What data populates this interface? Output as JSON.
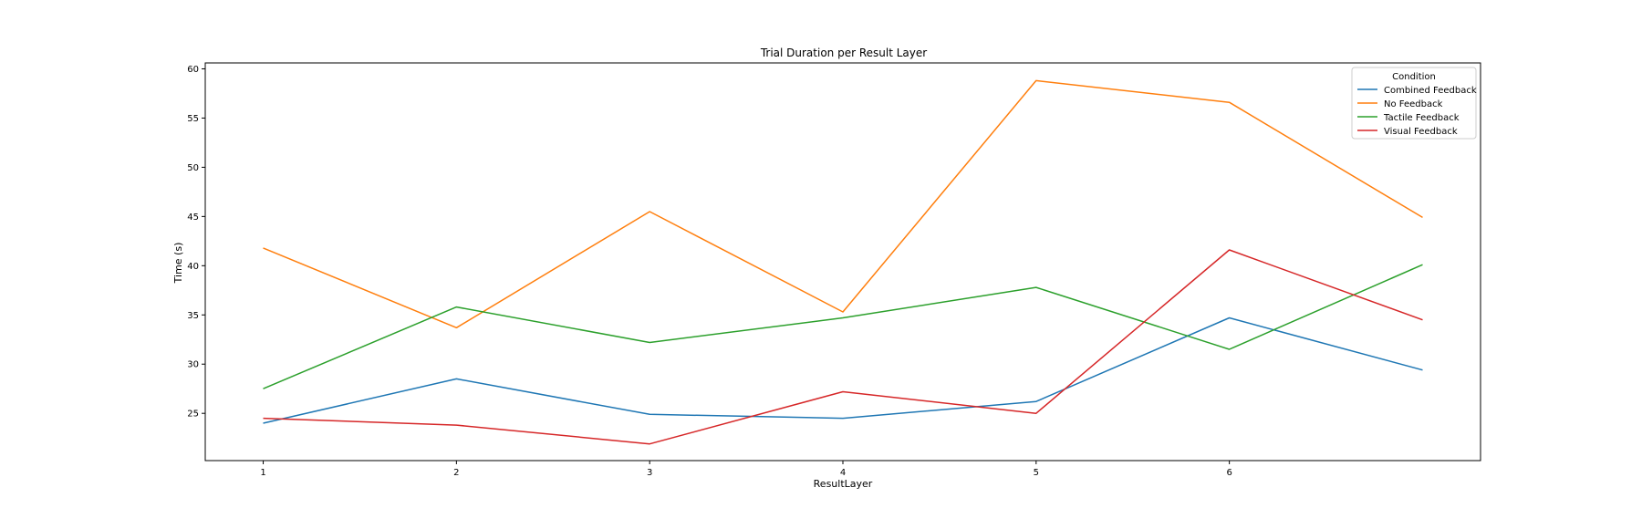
{
  "chart_data": {
    "type": "line",
    "title": "Trial Duration per Result Layer",
    "xlabel": "ResultLayer",
    "ylabel": "Time (s)",
    "x": [
      1,
      2,
      3,
      4,
      5,
      6,
      7
    ],
    "x_ticks": [
      "1",
      "2",
      "3",
      "4",
      "5",
      "6"
    ],
    "xlim": [
      0.7,
      7.3
    ],
    "y_ticks": [
      "25",
      "30",
      "35",
      "40",
      "45",
      "50",
      "55",
      "60"
    ],
    "ylim": [
      20.2,
      60.6
    ],
    "grid": false,
    "legend": {
      "title": "Condition",
      "placement": "top-right"
    },
    "series": [
      {
        "name": "Combined Feedback",
        "color": "#1f77b4",
        "values": [
          24.0,
          28.5,
          24.9,
          24.5,
          26.2,
          34.7,
          29.4
        ]
      },
      {
        "name": "No Feedback",
        "color": "#ff7f0e",
        "values": [
          41.8,
          33.7,
          45.5,
          35.3,
          58.8,
          56.6,
          44.9
        ]
      },
      {
        "name": "Tactile Feedback",
        "color": "#2ca02c",
        "values": [
          27.5,
          35.8,
          32.2,
          34.7,
          37.8,
          31.5,
          40.1
        ]
      },
      {
        "name": "Visual Feedback",
        "color": "#d62728",
        "values": [
          24.5,
          23.8,
          21.9,
          27.2,
          25.0,
          41.6,
          34.5
        ]
      }
    ]
  }
}
